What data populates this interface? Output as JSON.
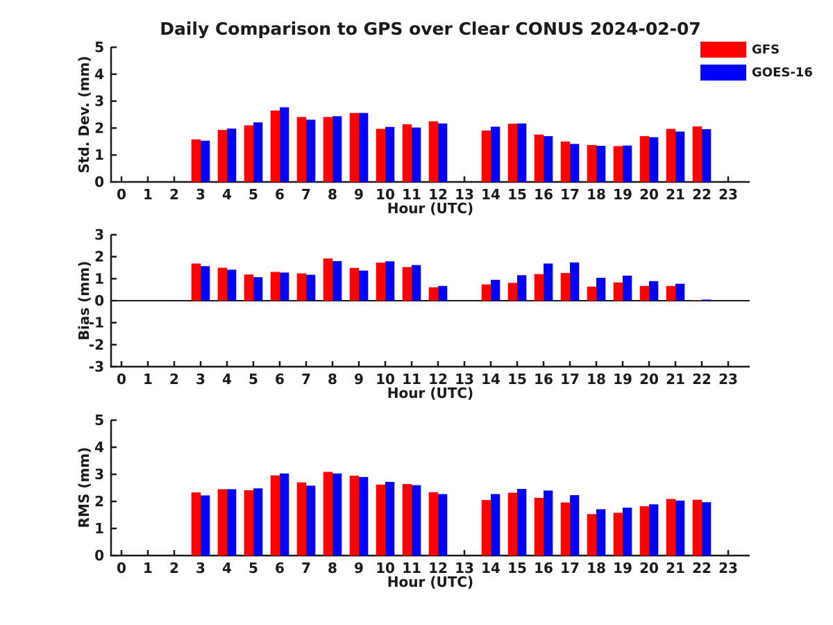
{
  "title": "Daily Comparison to GPS over Clear CONUS 2024-02-07",
  "legend": {
    "position": "top-right",
    "items": [
      {
        "label": "GFS",
        "color": "#ff0000"
      },
      {
        "label": "GOES-16",
        "color": "#0000ff"
      }
    ]
  },
  "chart_data": [
    {
      "type": "bar",
      "title": "",
      "xlabel": "Hour (UTC)",
      "ylabel": "Std. Dev. (mm)",
      "ylim": [
        0,
        5
      ],
      "yticks": [
        0,
        1,
        2,
        3,
        4,
        5
      ],
      "grid": false,
      "categories": [
        0,
        1,
        2,
        3,
        4,
        5,
        6,
        7,
        8,
        9,
        10,
        11,
        12,
        13,
        14,
        15,
        16,
        17,
        18,
        19,
        20,
        21,
        22,
        23
      ],
      "series": [
        {
          "name": "GFS",
          "color": "#ff0000",
          "values": [
            null,
            null,
            null,
            1.58,
            1.93,
            2.1,
            2.65,
            2.41,
            2.41,
            2.56,
            1.97,
            2.14,
            2.25,
            null,
            1.91,
            2.16,
            1.76,
            1.5,
            1.37,
            1.33,
            1.7,
            1.97,
            2.06,
            null
          ]
        },
        {
          "name": "GOES-16",
          "color": "#0000ff",
          "values": [
            null,
            null,
            null,
            1.53,
            1.98,
            2.21,
            2.77,
            2.31,
            2.44,
            2.56,
            2.04,
            2.02,
            2.17,
            null,
            2.05,
            2.17,
            1.7,
            1.41,
            1.34,
            1.35,
            1.66,
            1.87,
            1.96,
            null
          ]
        }
      ]
    },
    {
      "type": "bar",
      "title": "",
      "xlabel": "Hour (UTC)",
      "ylabel": "Bias (mm)",
      "ylim": [
        -3,
        3
      ],
      "yticks": [
        -3,
        -2,
        -1,
        0,
        1,
        2,
        3
      ],
      "grid": false,
      "zero_line": true,
      "categories": [
        0,
        1,
        2,
        3,
        4,
        5,
        6,
        7,
        8,
        9,
        10,
        11,
        12,
        13,
        14,
        15,
        16,
        17,
        18,
        19,
        20,
        21,
        22,
        23
      ],
      "series": [
        {
          "name": "GFS",
          "color": "#ff0000",
          "values": [
            null,
            null,
            null,
            1.69,
            1.5,
            1.19,
            1.31,
            1.24,
            1.92,
            1.49,
            1.73,
            1.53,
            0.61,
            null,
            0.74,
            0.81,
            1.21,
            1.26,
            0.64,
            0.83,
            0.67,
            0.67,
            0.02,
            null
          ]
        },
        {
          "name": "GOES-16",
          "color": "#0000ff",
          "values": [
            null,
            null,
            null,
            1.57,
            1.41,
            1.07,
            1.28,
            1.18,
            1.8,
            1.37,
            1.79,
            1.62,
            0.67,
            null,
            0.95,
            1.16,
            1.69,
            1.74,
            1.04,
            1.14,
            0.89,
            0.77,
            0.05,
            null
          ]
        }
      ]
    },
    {
      "type": "bar",
      "title": "",
      "xlabel": "Hour (UTC)",
      "ylabel": "RMS (mm)",
      "ylim": [
        0,
        5
      ],
      "yticks": [
        0,
        1,
        2,
        3,
        4,
        5
      ],
      "grid": false,
      "categories": [
        0,
        1,
        2,
        3,
        4,
        5,
        6,
        7,
        8,
        9,
        10,
        11,
        12,
        13,
        14,
        15,
        16,
        17,
        18,
        19,
        20,
        21,
        22,
        23
      ],
      "series": [
        {
          "name": "GFS",
          "color": "#ff0000",
          "values": [
            null,
            null,
            null,
            2.33,
            2.45,
            2.41,
            2.96,
            2.7,
            3.09,
            2.95,
            2.62,
            2.64,
            2.34,
            null,
            2.05,
            2.32,
            2.13,
            1.96,
            1.53,
            1.58,
            1.82,
            2.09,
            2.06,
            null
          ]
        },
        {
          "name": "GOES-16",
          "color": "#0000ff",
          "values": [
            null,
            null,
            null,
            2.22,
            2.45,
            2.48,
            3.03,
            2.58,
            3.03,
            2.9,
            2.72,
            2.6,
            2.27,
            null,
            2.27,
            2.46,
            2.4,
            2.23,
            1.71,
            1.77,
            1.89,
            2.03,
            1.97,
            null
          ]
        }
      ]
    }
  ]
}
